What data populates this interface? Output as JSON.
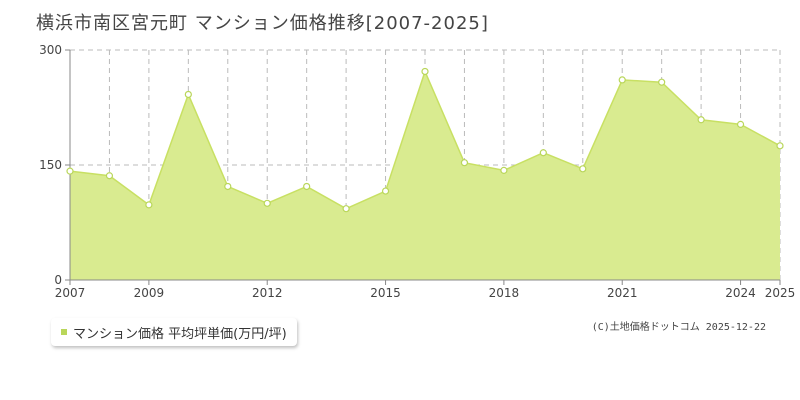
{
  "title": "横浜市南区宮元町 マンション価格推移[2007-2025]",
  "legend": {
    "label": "マンション価格 平均坪単価(万円/坪)"
  },
  "credit": "(C)土地価格ドットコム 2025-12-22",
  "colors": {
    "fill": "#d9eb90",
    "line": "#c8e063",
    "marker_stroke": "#b9d65a",
    "axis": "#888888",
    "grid": "#bbbbbb",
    "legend_swatch": "#b9d65a"
  },
  "chart_data": {
    "type": "area",
    "x": [
      2007,
      2008,
      2009,
      2010,
      2011,
      2012,
      2013,
      2014,
      2015,
      2016,
      2017,
      2018,
      2019,
      2020,
      2021,
      2022,
      2023,
      2024,
      2025
    ],
    "series": [
      {
        "name": "マンション価格 平均坪単価(万円/坪)",
        "values": [
          142,
          136,
          98,
          242,
          122,
          100,
          122,
          93,
          116,
          272,
          153,
          143,
          166,
          145,
          261,
          258,
          209,
          203,
          175
        ]
      }
    ],
    "xlim": [
      2007,
      2025
    ],
    "ylim": [
      0,
      300
    ],
    "x_ticks": [
      "2007",
      "2009",
      "2012",
      "2015",
      "2018",
      "2021",
      "2024",
      "2025"
    ],
    "y_ticks": [
      "0",
      "150",
      "300"
    ],
    "grid": true,
    "legend_position": "bottom-left"
  }
}
